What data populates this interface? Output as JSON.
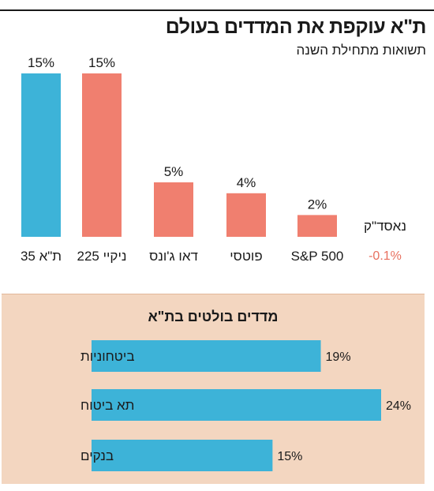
{
  "header": {
    "title": "ת\"א עוקפת את המדדים בעולם",
    "subtitle": "תשואות מתחילת השנה"
  },
  "colors": {
    "blue": "#3db3d8",
    "salmon": "#f07f6f",
    "negative": "#e8705f",
    "panel": "#f3d6c0",
    "ink": "#1a1a1a"
  },
  "chart_data": [
    {
      "type": "bar",
      "title": "ת\"א עוקפת את המדדים בעולם",
      "subtitle": "תשואות מתחילת השנה",
      "categories": [
        "ת\"א 35",
        "ניקיי 225",
        "דאו ג'ונס",
        "פוטסי",
        "S&P 500",
        "נאסד\"ק"
      ],
      "values": [
        15,
        15,
        5,
        4,
        2,
        -0.1
      ],
      "value_labels": [
        "15%",
        "15%",
        "5%",
        "4%",
        "2%",
        "-0.1%"
      ],
      "bar_colors": [
        "#3db3d8",
        "#f07f6f",
        "#f07f6f",
        "#f07f6f",
        "#f07f6f",
        "#e8705f"
      ],
      "ylim": [
        0,
        15
      ],
      "grid": false,
      "legend": "none"
    },
    {
      "type": "bar",
      "orientation": "horizontal",
      "title": "מדדים בולטים בת\"א",
      "categories": [
        "ביטחוניות",
        "תא ביטוח",
        "בנקים"
      ],
      "values": [
        19,
        24,
        15
      ],
      "value_labels": [
        "19%",
        "24%",
        "15%"
      ],
      "bar_color": "#3db3d8",
      "xlim": [
        0,
        24
      ],
      "grid": false,
      "legend": "none"
    }
  ]
}
